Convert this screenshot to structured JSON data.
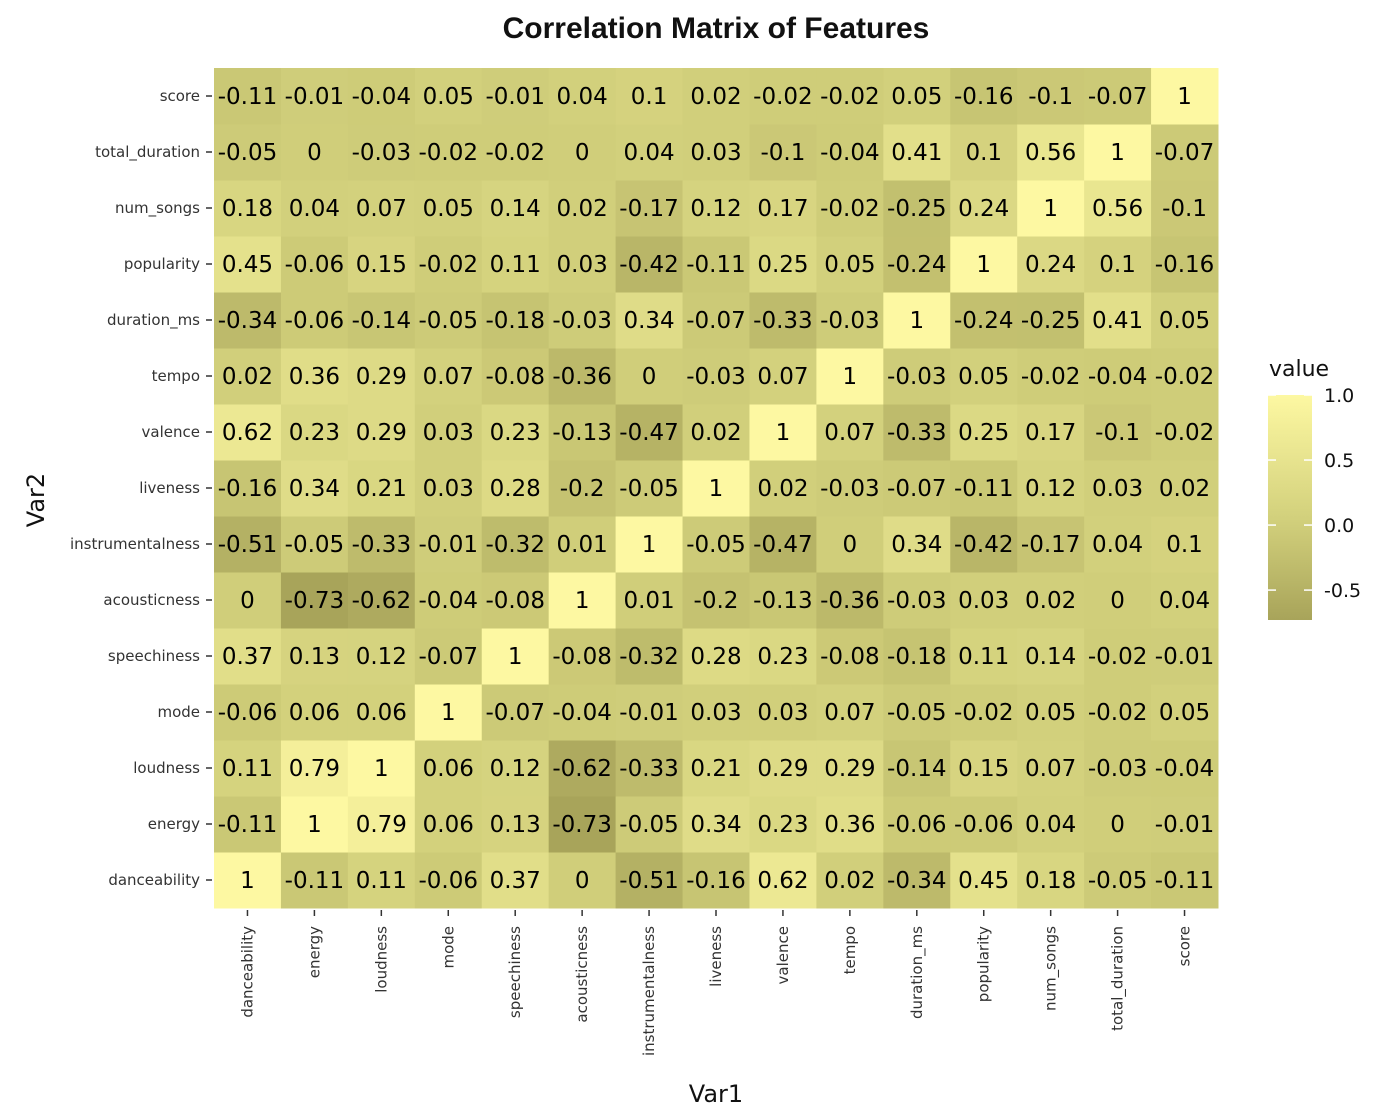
{
  "chart_data": {
    "type": "heatmap",
    "title": "Correlation Matrix of Features",
    "xlabel": "Var1",
    "ylabel": "Var2",
    "variables": [
      "danceability",
      "energy",
      "loudness",
      "mode",
      "speechiness",
      "acousticness",
      "instrumentalness",
      "liveness",
      "valence",
      "tempo",
      "duration_ms",
      "popularity",
      "num_songs",
      "total_duration",
      "score"
    ],
    "matrix": [
      [
        1,
        -0.11,
        0.11,
        -0.06,
        0.37,
        0,
        -0.51,
        -0.16,
        0.62,
        0.02,
        -0.34,
        0.45,
        0.18,
        -0.05,
        -0.11
      ],
      [
        -0.11,
        1,
        0.79,
        0.06,
        0.13,
        -0.73,
        -0.05,
        0.34,
        0.23,
        0.36,
        -0.06,
        -0.06,
        0.04,
        0,
        -0.01
      ],
      [
        0.11,
        0.79,
        1,
        0.06,
        0.12,
        -0.62,
        -0.33,
        0.21,
        0.29,
        0.29,
        -0.14,
        0.15,
        0.07,
        -0.03,
        -0.04
      ],
      [
        -0.06,
        0.06,
        0.06,
        1,
        -0.07,
        -0.04,
        -0.01,
        0.03,
        0.03,
        0.07,
        -0.05,
        -0.02,
        0.05,
        -0.02,
        0.05
      ],
      [
        0.37,
        0.13,
        0.12,
        -0.07,
        1,
        -0.08,
        -0.32,
        0.28,
        0.23,
        -0.08,
        -0.18,
        0.11,
        0.14,
        -0.02,
        -0.01
      ],
      [
        0,
        -0.73,
        -0.62,
        -0.04,
        -0.08,
        1,
        0.01,
        -0.2,
        -0.13,
        -0.36,
        -0.03,
        0.03,
        0.02,
        0,
        0.04
      ],
      [
        -0.51,
        -0.05,
        -0.33,
        -0.01,
        -0.32,
        0.01,
        1,
        -0.05,
        -0.47,
        0,
        0.34,
        -0.42,
        -0.17,
        0.04,
        0.1
      ],
      [
        -0.16,
        0.34,
        0.21,
        0.03,
        0.28,
        -0.2,
        -0.05,
        1,
        0.02,
        -0.03,
        -0.07,
        -0.11,
        0.12,
        0.03,
        0.02
      ],
      [
        0.62,
        0.23,
        0.29,
        0.03,
        0.23,
        -0.13,
        -0.47,
        0.02,
        1,
        0.07,
        -0.33,
        0.25,
        0.17,
        -0.1,
        -0.02
      ],
      [
        0.02,
        0.36,
        0.29,
        0.07,
        -0.08,
        -0.36,
        0,
        -0.03,
        0.07,
        1,
        -0.03,
        0.05,
        -0.02,
        -0.04,
        -0.02
      ],
      [
        -0.34,
        -0.06,
        -0.14,
        -0.05,
        -0.18,
        -0.03,
        0.34,
        -0.07,
        -0.33,
        -0.03,
        1,
        -0.24,
        -0.25,
        0.41,
        0.05
      ],
      [
        0.45,
        -0.06,
        0.15,
        -0.02,
        0.11,
        0.03,
        -0.42,
        -0.11,
        0.25,
        0.05,
        -0.24,
        1,
        0.24,
        0.1,
        -0.16
      ],
      [
        0.18,
        0.04,
        0.07,
        0.05,
        0.14,
        0.02,
        -0.17,
        0.12,
        0.17,
        -0.02,
        -0.25,
        0.24,
        1,
        0.56,
        -0.1
      ],
      [
        -0.05,
        0,
        -0.03,
        -0.02,
        -0.02,
        0,
        0.04,
        0.03,
        -0.1,
        -0.04,
        0.41,
        0.1,
        0.56,
        1,
        -0.07
      ],
      [
        -0.11,
        -0.01,
        -0.04,
        0.05,
        -0.01,
        0.04,
        0.1,
        0.02,
        -0.02,
        -0.02,
        0.05,
        -0.16,
        -0.1,
        -0.07,
        1
      ]
    ],
    "legend": {
      "title": "value",
      "position": "right",
      "ticks": [
        1.0,
        0.5,
        0.0,
        -0.5
      ],
      "tick_labels": [
        "1.0",
        "0.5",
        "0.0",
        "-0.5"
      ],
      "range": [
        -0.73,
        1.0
      ],
      "color_low": "#a8a45a",
      "color_high": "#fdf8a2"
    }
  }
}
